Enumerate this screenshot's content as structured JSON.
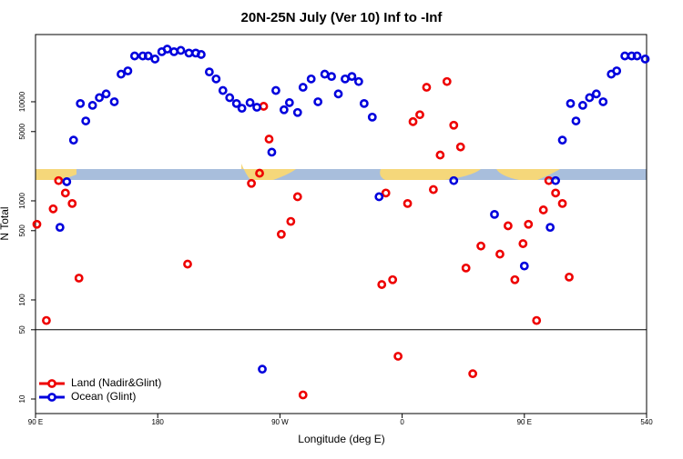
{
  "chart_data": {
    "type": "scatter",
    "title": "20N-25N July (Ver 10)   Inf to -Inf",
    "x_label": "Longitude (deg E)",
    "y_label": "N Total",
    "log_y": true,
    "xlim": [
      90,
      540
    ],
    "ylim": [
      7.13,
      47700
    ],
    "xticks": [
      {
        "value": 90,
        "label": "90 E"
      },
      180,
      {
        "value": 270,
        "label": "90 W"
      },
      {
        "value": 360,
        "label": "0"
      },
      {
        "value": 450,
        "label": "90 E"
      },
      540
    ],
    "yticks": [
      10,
      50,
      100,
      500,
      1000,
      5000,
      10000
    ],
    "hline": 50,
    "legend": "bottom-left",
    "series": [
      {
        "name": "Land (Nadir&Glint)",
        "color": "#ee0000",
        "x": [
          91,
          98,
          103,
          107,
          112,
          117,
          122,
          202,
          249,
          255,
          258,
          262,
          271,
          278,
          283,
          287,
          345,
          348,
          353,
          357,
          364,
          368,
          373,
          378,
          383,
          388,
          393,
          398,
          403,
          407,
          412,
          418,
          432,
          438,
          443,
          449,
          453,
          459,
          464,
          468,
          473,
          478,
          483
        ],
        "values": [
          580,
          62,
          830,
          1600,
          1200,
          940,
          166,
          230,
          1500,
          1900,
          9000,
          4200,
          460,
          620,
          1100,
          11,
          143,
          1200,
          160,
          27,
          940,
          6300,
          7400,
          14000,
          1300,
          2900,
          16000,
          5800,
          3500,
          210,
          18,
          350,
          290,
          560,
          160,
          370,
          580,
          62,
          810,
          1600,
          1200,
          940,
          170
        ]
      },
      {
        "name": "Ocean (Glint)",
        "color": "#0000dd",
        "x": [
          108,
          113,
          118,
          123,
          127,
          132,
          137,
          142,
          148,
          153,
          158,
          163,
          169,
          173,
          178,
          183,
          187,
          192,
          197,
          203,
          208,
          212,
          218,
          223,
          228,
          233,
          238,
          242,
          248,
          253,
          257,
          264,
          267,
          273,
          277,
          283,
          287,
          293,
          298,
          303,
          308,
          313,
          318,
          323,
          328,
          332,
          338,
          343,
          398,
          428,
          450,
          469,
          473,
          478,
          484,
          488,
          493,
          498,
          503,
          508,
          514,
          518,
          524,
          529,
          533,
          539
        ],
        "values": [
          540,
          1560,
          4100,
          9600,
          6400,
          9200,
          11000,
          12000,
          10000,
          19000,
          20500,
          29000,
          29000,
          29000,
          27000,
          32000,
          34000,
          32000,
          33000,
          31000,
          31000,
          30000,
          20000,
          17000,
          13000,
          11000,
          9600,
          8600,
          9800,
          8800,
          20,
          3100,
          13000,
          8300,
          9800,
          7800,
          14000,
          17000,
          10000,
          19000,
          18000,
          12000,
          17000,
          18000,
          16000,
          9600,
          7000,
          1100,
          1600,
          730,
          220,
          540,
          1600,
          4100,
          9600,
          6400,
          9200,
          11000,
          12000,
          10000,
          19000,
          20500,
          29000,
          29000,
          29000,
          27000
        ]
      }
    ]
  }
}
